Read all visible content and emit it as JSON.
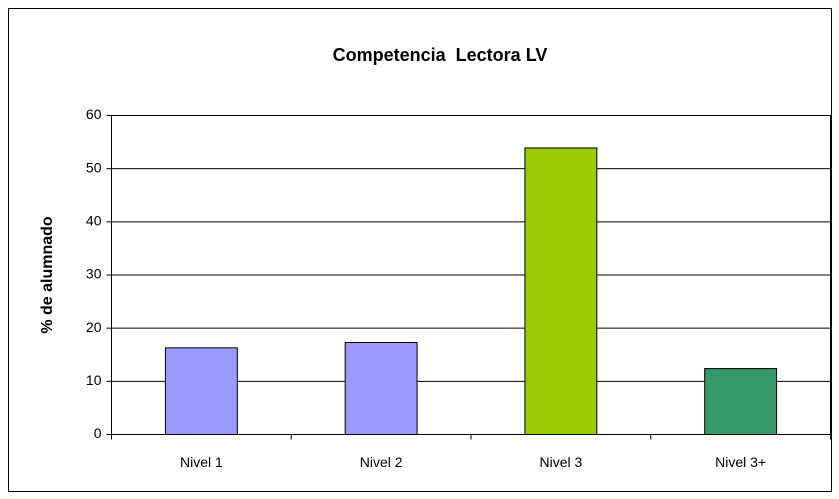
{
  "chart_data": {
    "type": "bar",
    "title": "Competencia  Lectora LV",
    "ylabel": "% de alumnado",
    "categories": [
      "Nivel 1",
      "Nivel 2",
      "Nivel 3",
      "Nivel 3+"
    ],
    "values": [
      16.3,
      17.3,
      53.9,
      12.4
    ],
    "colors": [
      "#9999ff",
      "#9999ff",
      "#99cc00",
      "#339966"
    ],
    "ylim": [
      0,
      60
    ],
    "yticks": [
      0,
      10,
      20,
      30,
      40,
      50,
      60
    ],
    "grid": true
  }
}
